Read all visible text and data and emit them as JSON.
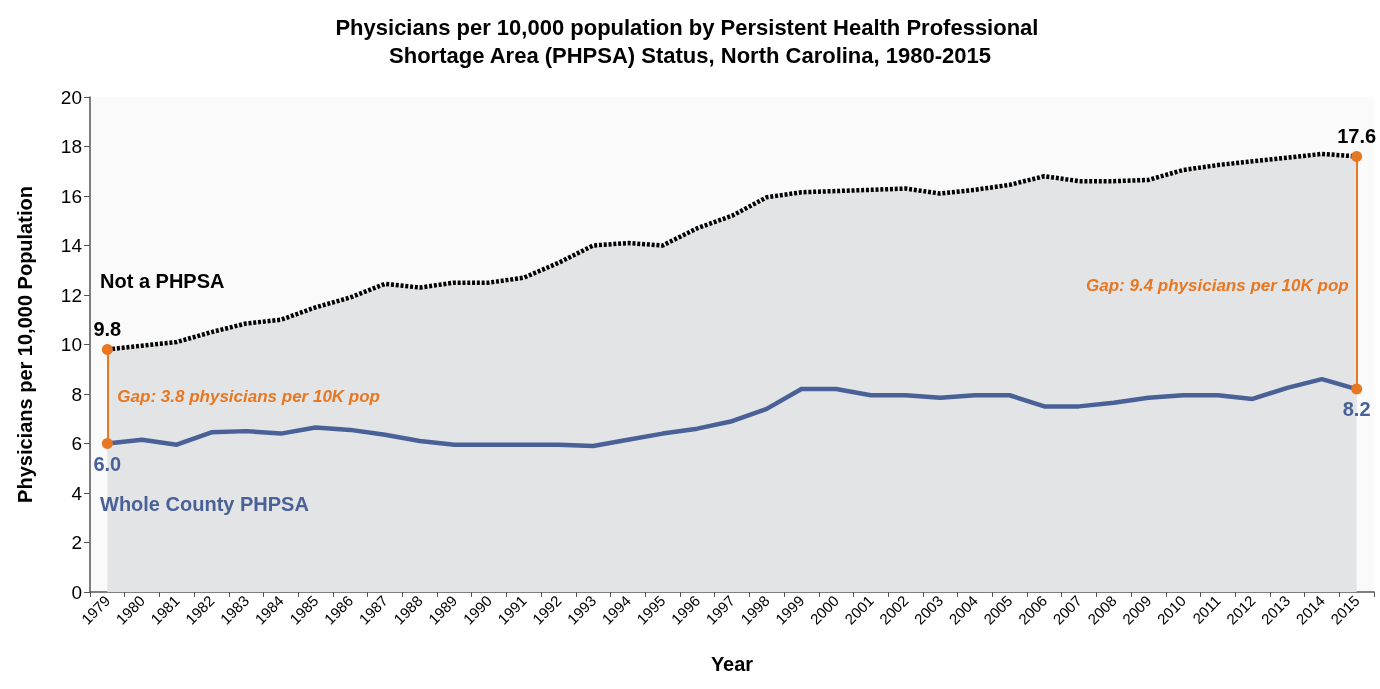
{
  "chart_data": {
    "type": "line",
    "title": "Physicians per 10,000 population by Persistent Health Professional Shortage Area (PHPSA) Status, North Carolina, 1980-2015",
    "xlabel": "Year",
    "ylabel": "Physicians per 10,000 Population",
    "categories": [
      "1979",
      "1980",
      "1981",
      "1982",
      "1983",
      "1984",
      "1985",
      "1986",
      "1987",
      "1988",
      "1989",
      "1990",
      "1991",
      "1992",
      "1993",
      "1994",
      "1995",
      "1996",
      "1997",
      "1998",
      "1999",
      "2000",
      "2001",
      "2002",
      "2003",
      "2004",
      "2005",
      "2006",
      "2007",
      "2008",
      "2009",
      "2010",
      "2011",
      "2012",
      "2013",
      "2014",
      "2015"
    ],
    "series": [
      {
        "name": "Not a PHPSA",
        "type": "area",
        "color": "#000000",
        "line_style": "dashed",
        "values": [
          9.8,
          9.95,
          10.1,
          10.5,
          10.85,
          11.0,
          11.5,
          11.9,
          12.45,
          12.3,
          12.5,
          12.5,
          12.7,
          13.3,
          14.0,
          14.1,
          14.0,
          14.7,
          15.2,
          15.95,
          16.15,
          16.2,
          16.25,
          16.3,
          16.1,
          16.25,
          16.45,
          16.8,
          16.6,
          16.6,
          16.65,
          17.05,
          17.25,
          17.4,
          17.55,
          17.7,
          17.6
        ],
        "value_labels": [
          "9.8",
          null,
          null,
          null,
          null,
          null,
          null,
          null,
          null,
          null,
          null,
          null,
          null,
          null,
          null,
          null,
          null,
          null,
          null,
          null,
          null,
          null,
          null,
          null,
          null,
          null,
          null,
          null,
          null,
          null,
          null,
          null,
          null,
          null,
          null,
          null,
          "17.6"
        ]
      },
      {
        "name": "Whole County PHPSA",
        "type": "line",
        "color": "#4a6198",
        "line_style": "solid",
        "values": [
          6.0,
          6.15,
          5.95,
          6.45,
          6.5,
          6.4,
          6.65,
          6.55,
          6.35,
          6.1,
          5.95,
          5.95,
          5.95,
          5.95,
          5.9,
          6.15,
          6.4,
          6.6,
          6.9,
          7.4,
          8.2,
          8.2,
          7.95,
          7.95,
          7.85,
          7.95,
          7.95,
          7.5,
          7.5,
          7.65,
          7.85,
          7.95,
          7.95,
          7.8,
          8.25,
          8.6,
          8.2
        ],
        "value_labels": [
          "6.0",
          null,
          null,
          null,
          null,
          null,
          null,
          null,
          null,
          null,
          null,
          null,
          null,
          null,
          null,
          null,
          null,
          null,
          null,
          null,
          null,
          null,
          null,
          null,
          null,
          null,
          null,
          null,
          null,
          null,
          null,
          null,
          null,
          null,
          null,
          null,
          "8.2"
        ]
      }
    ],
    "annotations": [
      {
        "text": "Gap: 3.8 physicians per 10K pop",
        "x": "1979",
        "y": 7.9
      },
      {
        "text": "Gap: 9.4 physicians per 10K pop",
        "x": "2015",
        "y": 12.4
      }
    ],
    "ylim": [
      0,
      20
    ],
    "yticks": [
      0,
      2,
      4,
      6,
      8,
      10,
      12,
      14,
      16,
      18,
      20
    ],
    "grid": false,
    "legend": false,
    "marker": "none"
  }
}
